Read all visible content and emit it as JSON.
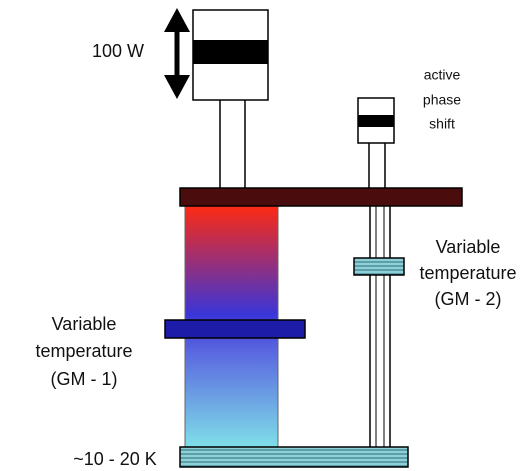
{
  "labels": {
    "power": "100 W",
    "phase_shift": [
      "active",
      "phase",
      "shift"
    ],
    "gm2": [
      "Variable",
      "temperature",
      "(GM - 2)"
    ],
    "gm1": [
      "Variable",
      "temperature",
      "(GM - 1)"
    ],
    "base_temperature": "~10 - 20 K"
  }
}
